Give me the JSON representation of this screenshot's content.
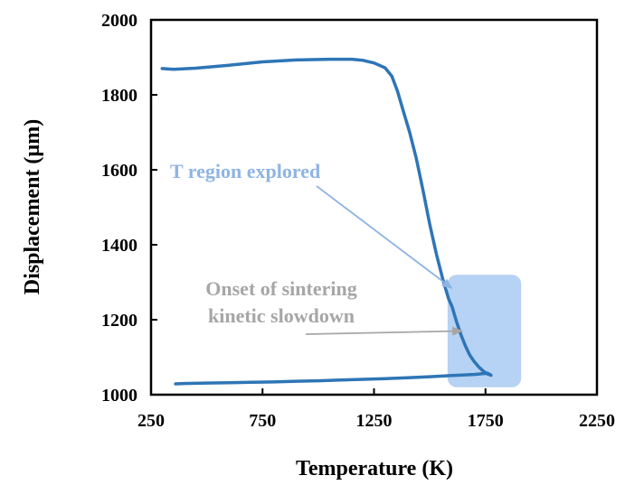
{
  "chart_data": {
    "type": "line",
    "xlabel": "Temperature (K)",
    "ylabel": "Displacement (µm)",
    "xlim": [
      250,
      2250
    ],
    "ylim": [
      1000,
      2000
    ],
    "xticks": [
      250,
      750,
      1250,
      1750,
      2250
    ],
    "yticks": [
      1000,
      1200,
      1400,
      1600,
      1800,
      2000
    ],
    "xtick_labels": [
      "250",
      "750",
      "1250",
      "1750",
      "2250"
    ],
    "ytick_labels": [
      "1000",
      "1200",
      "1400",
      "1600",
      "1800",
      "2000"
    ],
    "grid": false,
    "legend": "none",
    "series": [
      {
        "color": "#2e75b6",
        "x": [
          300,
          350,
          450,
          600,
          750,
          900,
          1050,
          1150,
          1200,
          1250,
          1300,
          1330,
          1355,
          1380,
          1410,
          1440,
          1470,
          1500,
          1530,
          1560,
          1585,
          1600,
          1620,
          1640,
          1660,
          1680,
          1700,
          1720,
          1740,
          1760,
          1775,
          1760,
          1700,
          1600,
          1500,
          1400,
          1300,
          1200,
          1100,
          1000,
          900,
          800,
          700,
          600,
          500,
          400,
          360
        ],
        "y": [
          1870,
          1868,
          1871,
          1879,
          1888,
          1893,
          1895,
          1895,
          1892,
          1885,
          1872,
          1850,
          1810,
          1760,
          1700,
          1630,
          1545,
          1455,
          1375,
          1305,
          1255,
          1235,
          1195,
          1160,
          1130,
          1105,
          1088,
          1074,
          1063,
          1055,
          1052,
          1057,
          1054,
          1051,
          1048,
          1045,
          1043,
          1041,
          1039,
          1037,
          1036,
          1034,
          1033,
          1032,
          1031,
          1030,
          1029
        ]
      }
    ],
    "annotations": [
      {
        "text": "T region explored",
        "color": "#8eb4e3",
        "x": 1605,
        "y": 1290
      },
      {
        "text": "Onset of sintering kinetic slowdown",
        "lines": [
          "Onset of sintering",
          "kinetic slowdown"
        ],
        "color": "#a6a6a6",
        "x": 1650,
        "y": 1170
      }
    ],
    "highlight_region": {
      "color": "#9dc3f0",
      "x": [
        1580,
        1910
      ],
      "y": [
        1020,
        1320
      ]
    }
  }
}
